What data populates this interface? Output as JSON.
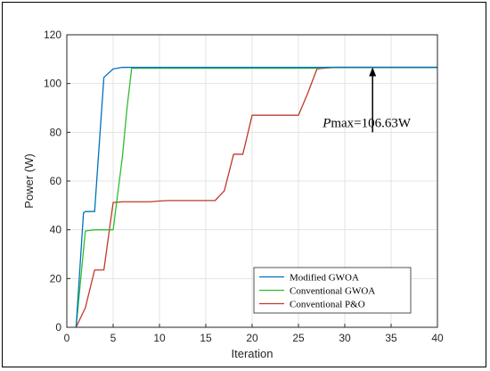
{
  "chart_data": {
    "type": "line",
    "title": "",
    "xlabel": "Iteration",
    "ylabel": "Power (W)",
    "xlim": [
      0,
      40
    ],
    "ylim": [
      0,
      120
    ],
    "xticks": [
      0,
      5,
      10,
      15,
      20,
      25,
      30,
      35,
      40
    ],
    "yticks": [
      0,
      20,
      40,
      60,
      80,
      100,
      120
    ],
    "grid": true,
    "legend_position": "bottom-right",
    "series": [
      {
        "name": "Modified GWOA",
        "color": "#0072BD",
        "x": [
          1,
          1.8,
          2,
          3,
          4,
          5,
          6,
          40
        ],
        "y": [
          0,
          47,
          47.5,
          47.5,
          102.5,
          106,
          106.63,
          106.63
        ]
      },
      {
        "name": "Conventional GWOA",
        "color": "#2DBE2D",
        "x": [
          1,
          2,
          3,
          4,
          5,
          5.5,
          6,
          6.5,
          7,
          27,
          28,
          40
        ],
        "y": [
          0,
          39.5,
          40,
          40,
          40,
          55,
          70,
          90,
          106.3,
          106.3,
          106.63,
          106.63
        ]
      },
      {
        "name": "Conventional P&O",
        "color": "#C0392B",
        "x": [
          1,
          2,
          3,
          4,
          5,
          6,
          7,
          8,
          9,
          10,
          11,
          12,
          13,
          14,
          15,
          16,
          17,
          18,
          19,
          20,
          21,
          22,
          23,
          24,
          25,
          26,
          27,
          28,
          29,
          30,
          40
        ],
        "y": [
          0,
          8,
          23.5,
          23.5,
          51.2,
          51.5,
          51.5,
          51.5,
          51.5,
          51.8,
          52,
          52,
          52,
          52,
          52,
          52,
          56,
          71,
          71,
          87,
          87,
          87,
          87,
          87,
          87,
          96,
          106,
          106.4,
          106.63,
          106.63,
          106.63
        ]
      }
    ],
    "annotation": {
      "italic_part": "P",
      "text": "max=106.63W",
      "arrow_x": 33,
      "arrow_from_y": 80,
      "arrow_to_y": 106.63
    }
  }
}
